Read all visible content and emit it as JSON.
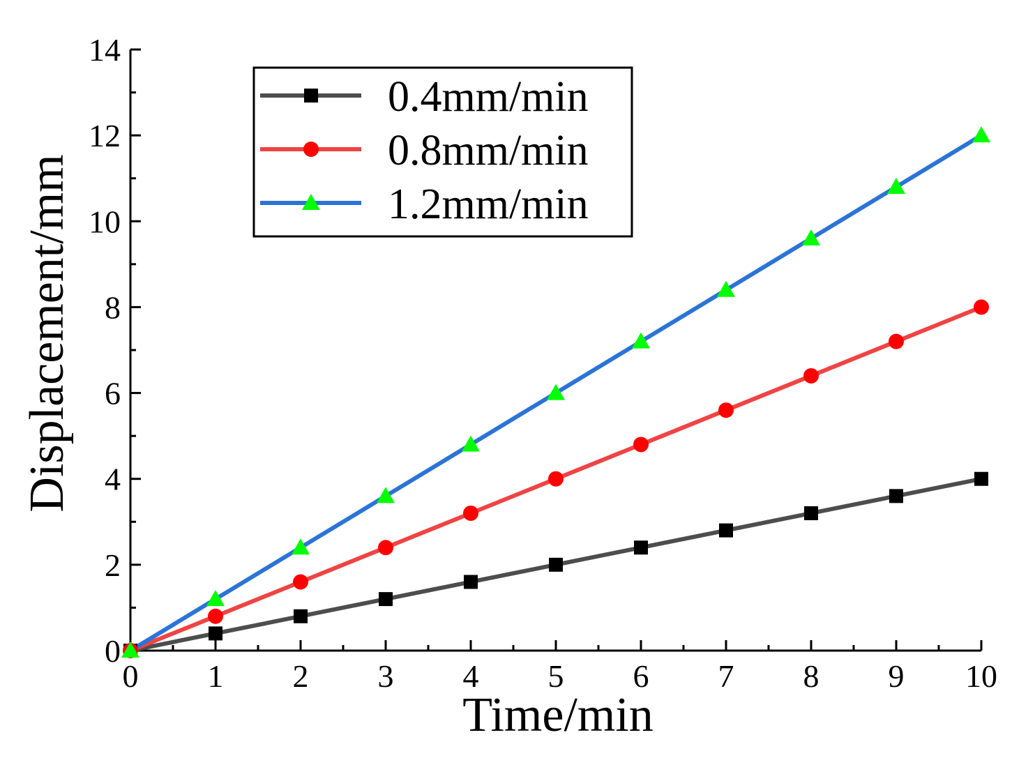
{
  "chart_data": {
    "type": "line",
    "title": "",
    "xlabel": "Time/min",
    "ylabel": "Displacement/mm",
    "xlim": [
      0,
      10
    ],
    "ylim": [
      0,
      14
    ],
    "xticks": [
      0,
      1,
      2,
      3,
      4,
      5,
      6,
      7,
      8,
      9,
      10
    ],
    "yticks": [
      0,
      2,
      4,
      6,
      8,
      10,
      12,
      14
    ],
    "grid": false,
    "legend_position": "top-left",
    "x": [
      0,
      1,
      2,
      3,
      4,
      5,
      6,
      7,
      8,
      9,
      10
    ],
    "series": [
      {
        "name": "0.4mm/min",
        "color": "#4d4d4d",
        "marker": "square",
        "marker_color": "#000000",
        "values": [
          0,
          0.4,
          0.8,
          1.2,
          1.6,
          2.0,
          2.4,
          2.8,
          3.2,
          3.6,
          4.0
        ]
      },
      {
        "name": "0.8mm/min",
        "color": "#ef4444",
        "marker": "circle",
        "marker_color": "#ff0000",
        "values": [
          0,
          0.8,
          1.6,
          2.4,
          3.2,
          4.0,
          4.8,
          5.6,
          6.4,
          7.2,
          8.0
        ]
      },
      {
        "name": "1.2mm/min",
        "color": "#2b74d6",
        "marker": "triangle",
        "marker_color": "#00ff00",
        "values": [
          0,
          1.2,
          2.4,
          3.6,
          4.8,
          6.0,
          7.2,
          8.4,
          9.6,
          10.8,
          12.0
        ]
      }
    ]
  }
}
